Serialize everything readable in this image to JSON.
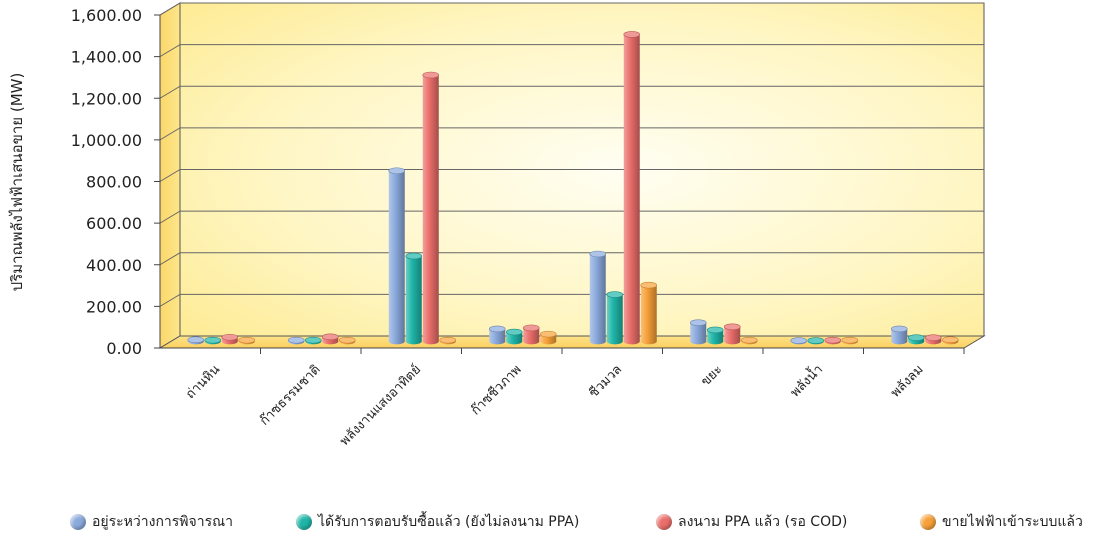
{
  "chart_data": {
    "type": "bar",
    "ylabel": "ปริมาณพลังไฟฟ้าเสนอขาย (MW)",
    "xlabel": "",
    "ylim": [
      0,
      1600
    ],
    "ytick_labels": [
      "0.00",
      "200.00",
      "400.00",
      "600.00",
      "800.00",
      "1,000.00",
      "1,200.00",
      "1,400.00",
      "1,600.00"
    ],
    "grid": true,
    "legend_position": "bottom",
    "categories": [
      "ถ่านหิน",
      "ก๊าซธรรมชาติ",
      "พลังงานแสงอาทิตย์",
      "ก๊าซชีวภาพ",
      "ชีวมวล",
      "ขยะ",
      "พลังน้ำ",
      "พลังลม"
    ],
    "series": [
      {
        "name": "อยู่ระหว่างการพิจารณา",
        "color": "#8aa9dc",
        "values": [
          8,
          6,
          820,
          60,
          420,
          90,
          4,
          60
        ]
      },
      {
        "name": "ได้รับการตอบรับซื้อแล้ว (ยังไม่ลงนาม PPA)",
        "color": "#1fb5a8",
        "values": [
          6,
          6,
          410,
          45,
          225,
          55,
          4,
          18
        ]
      },
      {
        "name": "ลงนาม PPA แล้ว (รอ COD)",
        "color": "#ea6e6a",
        "values": [
          20,
          22,
          1280,
          65,
          1475,
          70,
          6,
          18
        ]
      },
      {
        "name": "ขายไฟฟ้าเข้าระบบแล้ว",
        "color": "#f6a038",
        "values": [
          6,
          6,
          6,
          35,
          270,
          6,
          6,
          8
        ]
      }
    ]
  }
}
